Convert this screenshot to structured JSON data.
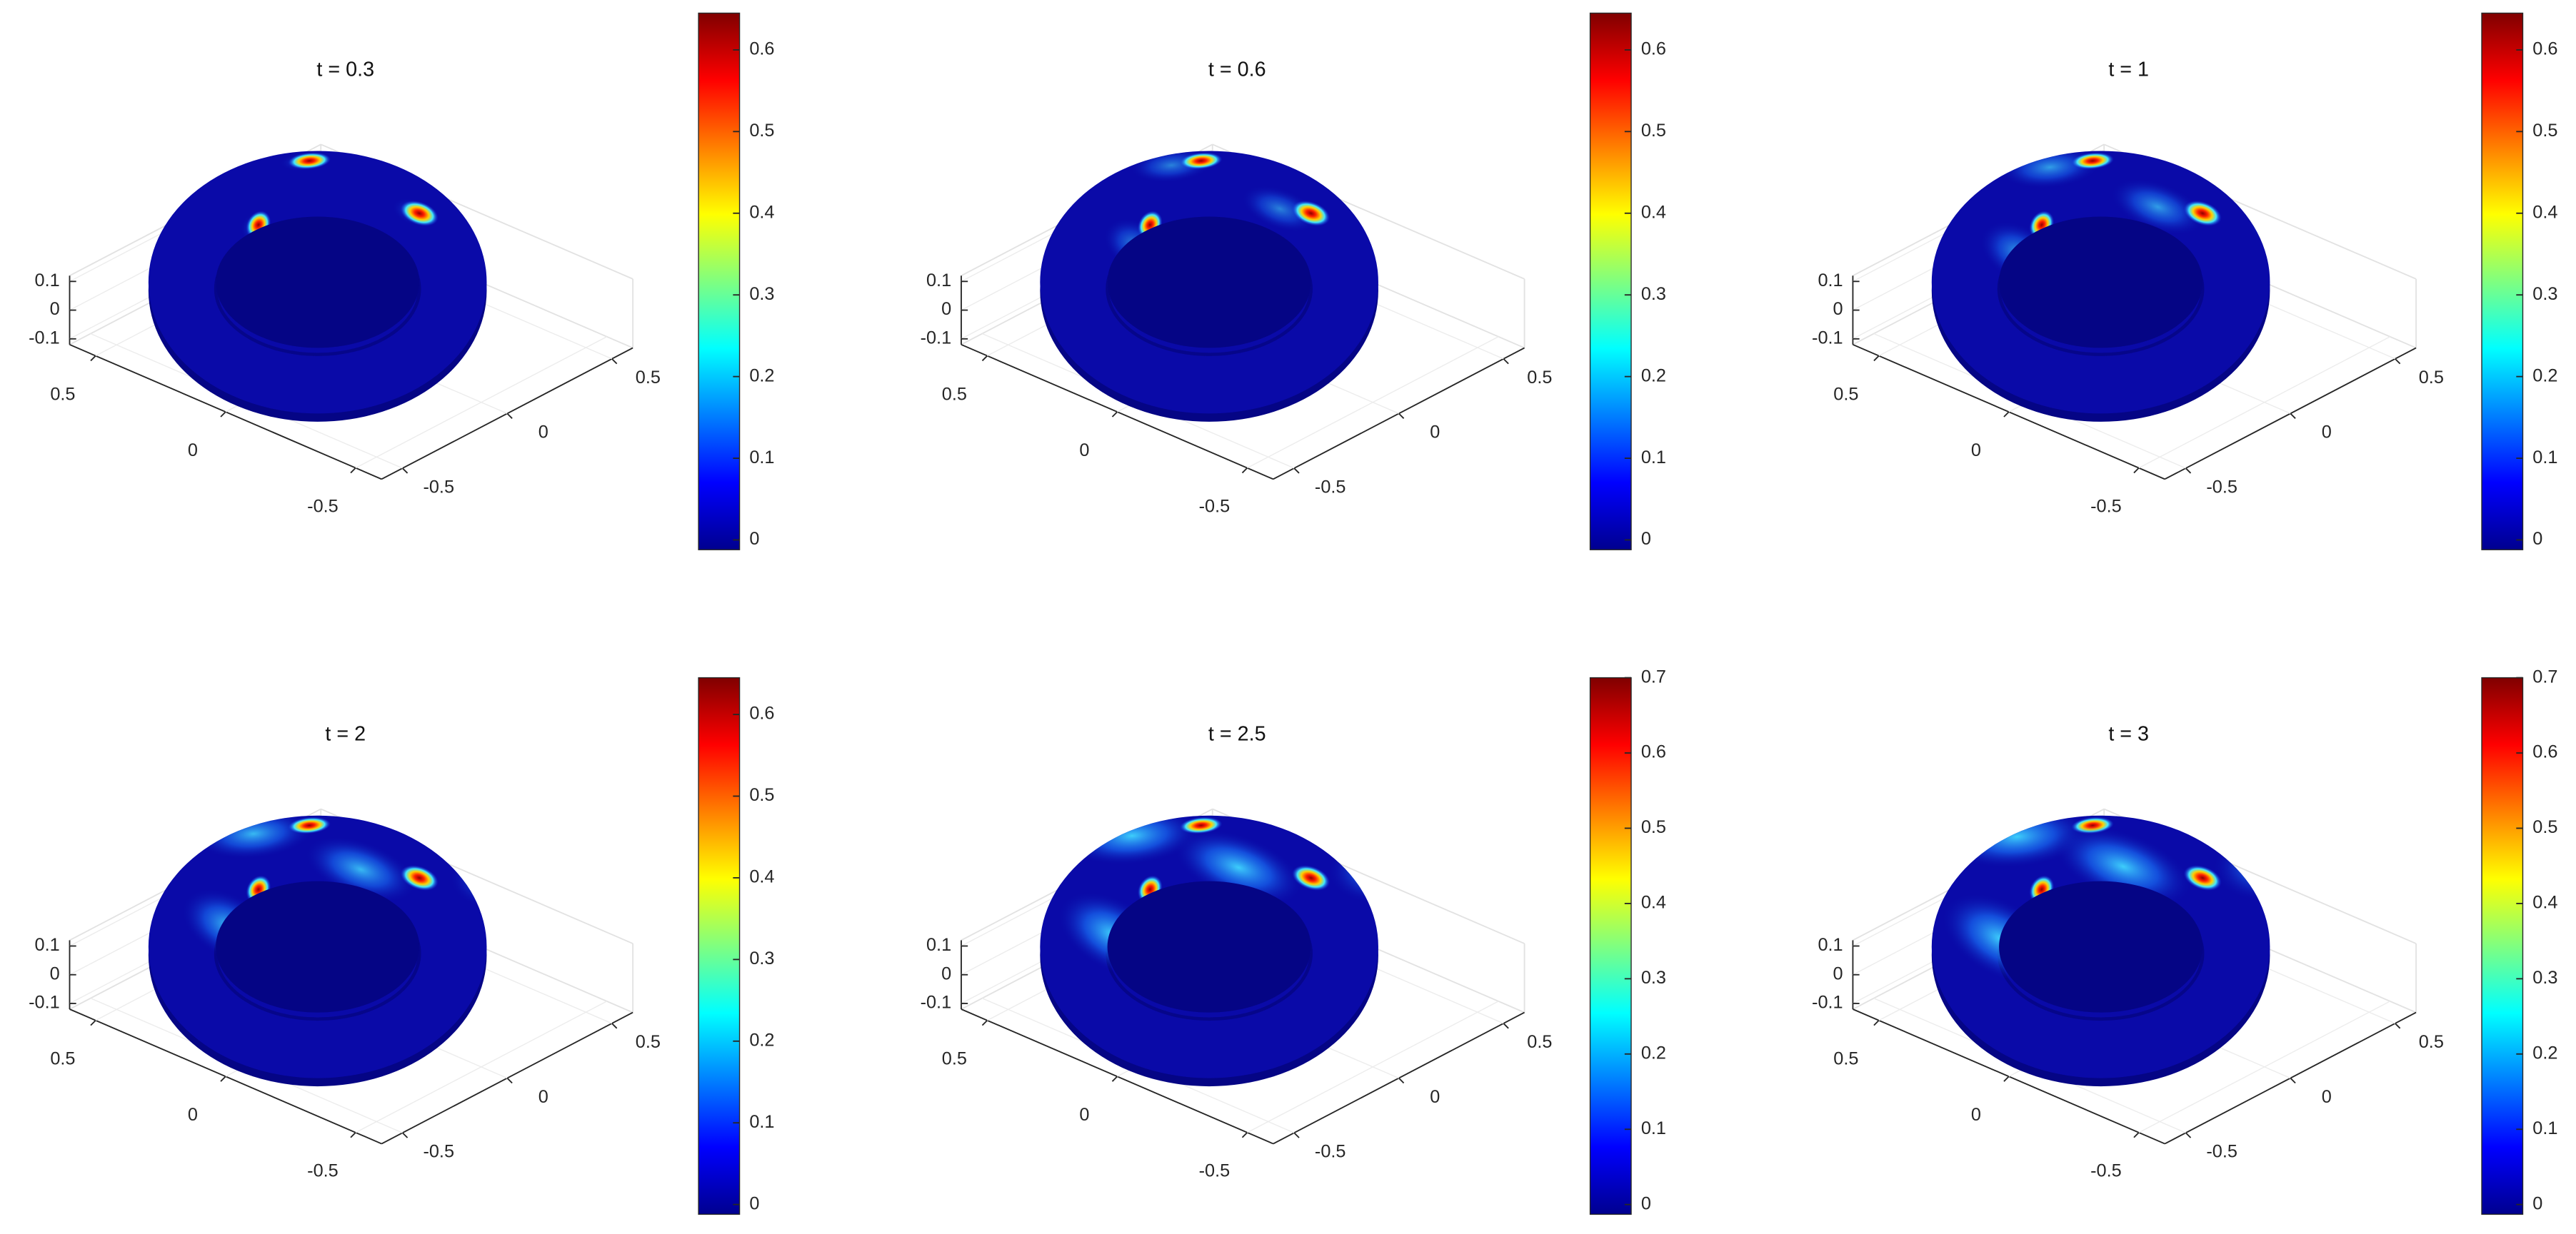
{
  "chart_data": [
    {
      "type": "surface",
      "title": "t = 0.3",
      "xlim": [
        -0.6,
        0.6
      ],
      "ylim": [
        -0.6,
        0.6
      ],
      "zlim": [
        -0.12,
        0.12
      ],
      "xticks": [
        -0.5,
        0,
        0.5
      ],
      "yticks": [
        -0.5,
        0,
        0.5
      ],
      "zticks": [
        -0.1,
        0,
        0.1
      ],
      "grid": true,
      "colormap": "jet",
      "clim": [
        -0.012,
        0.645
      ],
      "cticks": [
        0,
        0.1,
        0.2,
        0.3,
        0.4,
        0.5,
        0.6
      ]
    },
    {
      "type": "surface",
      "title": "t = 0.6",
      "xlim": [
        -0.6,
        0.6
      ],
      "ylim": [
        -0.6,
        0.6
      ],
      "zlim": [
        -0.12,
        0.12
      ],
      "xticks": [
        -0.5,
        0,
        0.5
      ],
      "yticks": [
        -0.5,
        0,
        0.5
      ],
      "zticks": [
        -0.1,
        0,
        0.1
      ],
      "grid": true,
      "colormap": "jet",
      "clim": [
        -0.012,
        0.645
      ],
      "cticks": [
        0,
        0.1,
        0.2,
        0.3,
        0.4,
        0.5,
        0.6
      ]
    },
    {
      "type": "surface",
      "title": "t = 1",
      "xlim": [
        -0.6,
        0.6
      ],
      "ylim": [
        -0.6,
        0.6
      ],
      "zlim": [
        -0.12,
        0.12
      ],
      "xticks": [
        -0.5,
        0,
        0.5
      ],
      "yticks": [
        -0.5,
        0,
        0.5
      ],
      "zticks": [
        -0.1,
        0,
        0.1
      ],
      "grid": true,
      "colormap": "jet",
      "clim": [
        -0.012,
        0.645
      ],
      "cticks": [
        0,
        0.1,
        0.2,
        0.3,
        0.4,
        0.5,
        0.6
      ]
    },
    {
      "type": "surface",
      "title": "t = 2",
      "xlim": [
        -0.6,
        0.6
      ],
      "ylim": [
        -0.6,
        0.6
      ],
      "zlim": [
        -0.12,
        0.12
      ],
      "xticks": [
        -0.5,
        0,
        0.5
      ],
      "yticks": [
        -0.5,
        0,
        0.5
      ],
      "zticks": [
        -0.1,
        0,
        0.1
      ],
      "grid": true,
      "colormap": "jet",
      "clim": [
        -0.012,
        0.645
      ],
      "cticks": [
        0,
        0.1,
        0.2,
        0.3,
        0.4,
        0.5,
        0.6
      ]
    },
    {
      "type": "surface",
      "title": "t = 2.5",
      "xlim": [
        -0.6,
        0.6
      ],
      "ylim": [
        -0.6,
        0.6
      ],
      "zlim": [
        -0.12,
        0.12
      ],
      "xticks": [
        -0.5,
        0,
        0.5
      ],
      "yticks": [
        -0.5,
        0,
        0.5
      ],
      "zticks": [
        -0.1,
        0,
        0.1
      ],
      "grid": true,
      "colormap": "jet",
      "clim": [
        -0.013,
        0.7
      ],
      "cticks": [
        0,
        0.1,
        0.2,
        0.3,
        0.4,
        0.5,
        0.6,
        0.7
      ]
    },
    {
      "type": "surface",
      "title": "t = 3",
      "xlim": [
        -0.6,
        0.6
      ],
      "ylim": [
        -0.6,
        0.6
      ],
      "zlim": [
        -0.12,
        0.12
      ],
      "xticks": [
        -0.5,
        0,
        0.5
      ],
      "yticks": [
        -0.5,
        0,
        0.5
      ],
      "zticks": [
        -0.1,
        0,
        0.1
      ],
      "grid": true,
      "colormap": "jet",
      "clim": [
        -0.013,
        0.7
      ],
      "cticks": [
        0,
        0.1,
        0.2,
        0.3,
        0.4,
        0.5,
        0.6,
        0.7
      ]
    }
  ]
}
